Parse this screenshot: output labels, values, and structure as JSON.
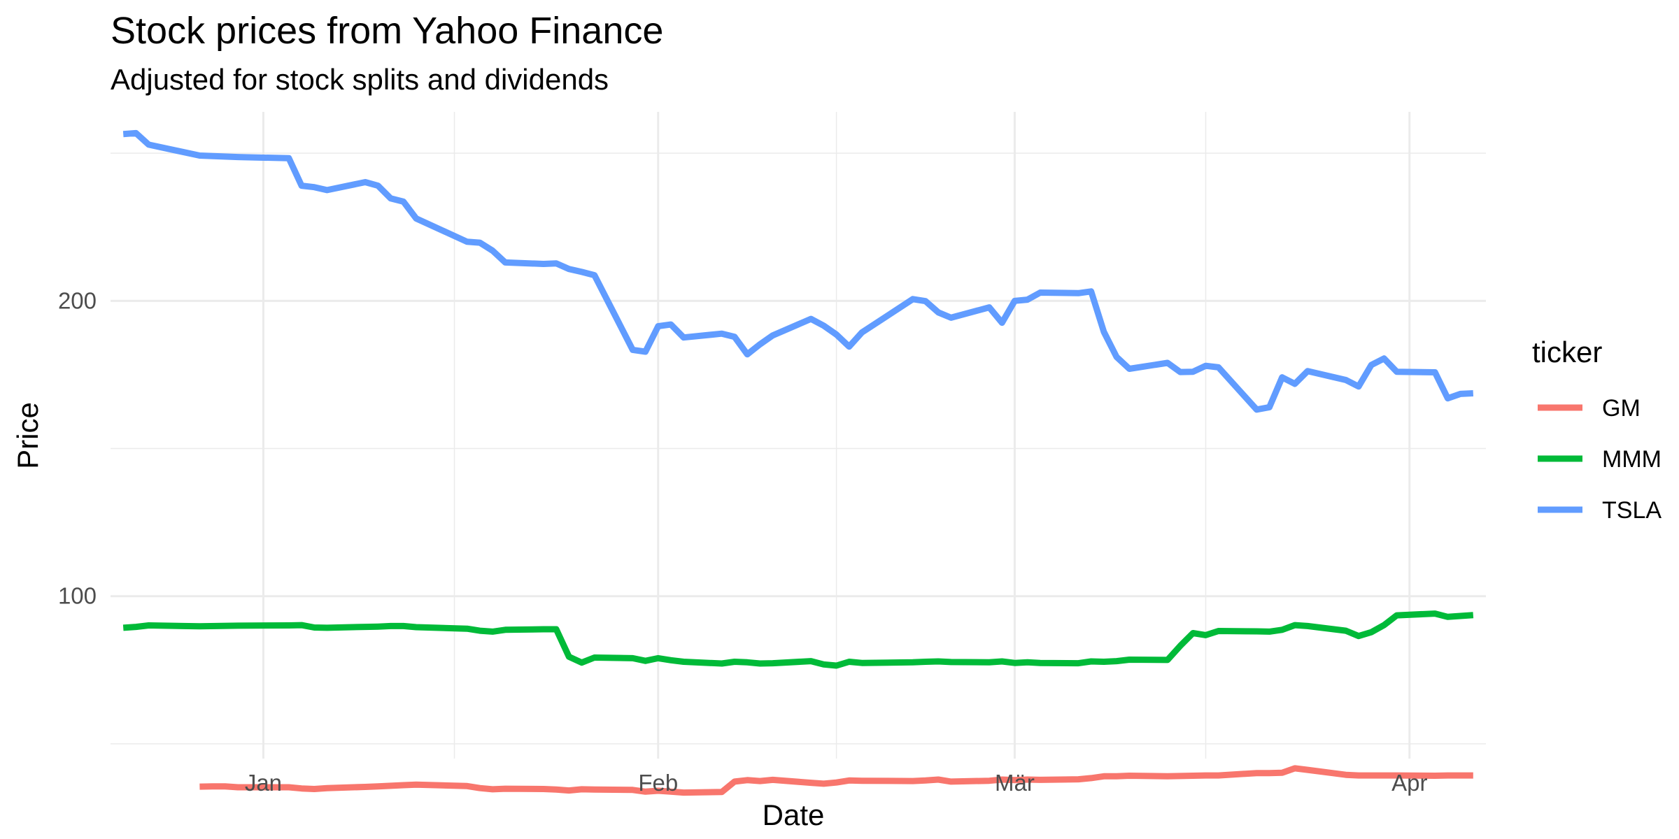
{
  "chart_data": {
    "type": "line",
    "title": "Stock prices from Yahoo Finance",
    "subtitle": "Adjusted for stock splits and dividends",
    "xlabel": "Date",
    "ylabel": "Price",
    "ylim": [
      45,
      264
    ],
    "xlim": [
      "2022-12-20",
      "2023-04-07"
    ],
    "x_ticks": [
      {
        "date": "2023-01-01",
        "label": "Jan"
      },
      {
        "date": "2023-02-01",
        "label": "Feb"
      },
      {
        "date": "2023-03-01",
        "label": "Mär"
      },
      {
        "date": "2023-04-01",
        "label": "Apr"
      }
    ],
    "x_minor_ticks": [
      "2023-01-16",
      "2023-02-15",
      "2023-03-16"
    ],
    "y_ticks": [
      100,
      200
    ],
    "y_minor_ticks": [
      50,
      150,
      250
    ],
    "grid": true,
    "legend": {
      "title": "ticker",
      "position": "right"
    },
    "series": [
      {
        "name": "GM",
        "color": "#F8766D",
        "points": [
          [
            "2022-12-27",
            35.5
          ],
          [
            "2022-12-28",
            35.6
          ],
          [
            "2022-12-29",
            35.6
          ],
          [
            "2022-12-30",
            35.3
          ],
          [
            "2023-01-03",
            35.3
          ],
          [
            "2023-01-04",
            34.9
          ],
          [
            "2023-01-05",
            34.7
          ],
          [
            "2023-01-06",
            35.0
          ],
          [
            "2023-01-09",
            35.4
          ],
          [
            "2023-01-10",
            35.6
          ],
          [
            "2023-01-11",
            35.8
          ],
          [
            "2023-01-12",
            36.0
          ],
          [
            "2023-01-13",
            36.2
          ],
          [
            "2023-01-17",
            35.7
          ],
          [
            "2023-01-18",
            35.0
          ],
          [
            "2023-01-19",
            34.6
          ],
          [
            "2023-01-20",
            34.8
          ],
          [
            "2023-01-23",
            34.7
          ],
          [
            "2023-01-24",
            34.5
          ],
          [
            "2023-01-25",
            34.2
          ],
          [
            "2023-01-26",
            34.6
          ],
          [
            "2023-01-27",
            34.5
          ],
          [
            "2023-01-30",
            34.4
          ],
          [
            "2023-01-31",
            33.8
          ],
          [
            "2023-02-01",
            34.1
          ],
          [
            "2023-02-02",
            33.8
          ],
          [
            "2023-02-03",
            33.5
          ],
          [
            "2023-02-06",
            33.7
          ],
          [
            "2023-02-07",
            37.2
          ],
          [
            "2023-02-08",
            37.7
          ],
          [
            "2023-02-09",
            37.4
          ],
          [
            "2023-02-10",
            37.8
          ],
          [
            "2023-02-13",
            36.8
          ],
          [
            "2023-02-14",
            36.5
          ],
          [
            "2023-02-15",
            36.9
          ],
          [
            "2023-02-16",
            37.6
          ],
          [
            "2023-02-17",
            37.5
          ],
          [
            "2023-02-21",
            37.4
          ],
          [
            "2023-02-22",
            37.6
          ],
          [
            "2023-02-23",
            37.9
          ],
          [
            "2023-02-24",
            37.2
          ],
          [
            "2023-02-27",
            37.5
          ],
          [
            "2023-02-28",
            37.9
          ],
          [
            "2023-03-01",
            37.7
          ],
          [
            "2023-03-02",
            37.9
          ],
          [
            "2023-03-03",
            37.8
          ],
          [
            "2023-03-06",
            38.0
          ],
          [
            "2023-03-07",
            38.4
          ],
          [
            "2023-03-08",
            39.0
          ],
          [
            "2023-03-09",
            39.0
          ],
          [
            "2023-03-10",
            39.2
          ],
          [
            "2023-03-13",
            39.0
          ],
          [
            "2023-03-14",
            39.1
          ],
          [
            "2023-03-15",
            39.2
          ],
          [
            "2023-03-16",
            39.3
          ],
          [
            "2023-03-17",
            39.3
          ],
          [
            "2023-03-20",
            40.1
          ],
          [
            "2023-03-21",
            40.1
          ],
          [
            "2023-03-22",
            40.2
          ],
          [
            "2023-03-23",
            41.7
          ],
          [
            "2023-03-24",
            41.2
          ],
          [
            "2023-03-27",
            39.5
          ],
          [
            "2023-03-28",
            39.3
          ],
          [
            "2023-03-29",
            39.3
          ],
          [
            "2023-03-30",
            39.3
          ],
          [
            "2023-03-31",
            39.3
          ],
          [
            "2023-04-03",
            39.2
          ],
          [
            "2023-04-04",
            39.3
          ],
          [
            "2023-04-05",
            39.3
          ],
          [
            "2023-04-06",
            39.3
          ]
        ]
      },
      {
        "name": "MMM",
        "color": "#00BA38",
        "points": [
          [
            "2022-12-21",
            89.3
          ],
          [
            "2022-12-22",
            89.6
          ],
          [
            "2022-12-23",
            90.1
          ],
          [
            "2022-12-27",
            89.8
          ],
          [
            "2022-12-30",
            90.0
          ],
          [
            "2023-01-03",
            90.1
          ],
          [
            "2023-01-04",
            90.2
          ],
          [
            "2023-01-05",
            89.4
          ],
          [
            "2023-01-06",
            89.3
          ],
          [
            "2023-01-09",
            89.6
          ],
          [
            "2023-01-10",
            89.7
          ],
          [
            "2023-01-11",
            89.9
          ],
          [
            "2023-01-12",
            89.9
          ],
          [
            "2023-01-13",
            89.5
          ],
          [
            "2023-01-17",
            89.0
          ],
          [
            "2023-01-18",
            88.3
          ],
          [
            "2023-01-19",
            88.0
          ],
          [
            "2023-01-20",
            88.6
          ],
          [
            "2023-01-23",
            88.8
          ],
          [
            "2023-01-24",
            88.8
          ],
          [
            "2023-01-25",
            79.5
          ],
          [
            "2023-01-26",
            77.5
          ],
          [
            "2023-01-27",
            79.2
          ],
          [
            "2023-01-30",
            79.0
          ],
          [
            "2023-01-31",
            78.1
          ],
          [
            "2023-02-01",
            79.0
          ],
          [
            "2023-02-02",
            78.3
          ],
          [
            "2023-02-03",
            77.8
          ],
          [
            "2023-02-06",
            77.2
          ],
          [
            "2023-02-07",
            77.8
          ],
          [
            "2023-02-08",
            77.6
          ],
          [
            "2023-02-09",
            77.2
          ],
          [
            "2023-02-10",
            77.3
          ],
          [
            "2023-02-13",
            78.0
          ],
          [
            "2023-02-14",
            76.9
          ],
          [
            "2023-02-15",
            76.5
          ],
          [
            "2023-02-16",
            77.8
          ],
          [
            "2023-02-17",
            77.4
          ],
          [
            "2023-02-21",
            77.6
          ],
          [
            "2023-02-22",
            77.8
          ],
          [
            "2023-02-23",
            77.9
          ],
          [
            "2023-02-24",
            77.7
          ],
          [
            "2023-02-27",
            77.6
          ],
          [
            "2023-02-28",
            77.9
          ],
          [
            "2023-03-01",
            77.4
          ],
          [
            "2023-03-02",
            77.6
          ],
          [
            "2023-03-03",
            77.4
          ],
          [
            "2023-03-06",
            77.3
          ],
          [
            "2023-03-07",
            77.9
          ],
          [
            "2023-03-08",
            77.8
          ],
          [
            "2023-03-09",
            78.0
          ],
          [
            "2023-03-10",
            78.5
          ],
          [
            "2023-03-13",
            78.4
          ],
          [
            "2023-03-14",
            83.2
          ],
          [
            "2023-03-15",
            87.5
          ],
          [
            "2023-03-16",
            86.8
          ],
          [
            "2023-03-17",
            88.2
          ],
          [
            "2023-03-20",
            88.1
          ],
          [
            "2023-03-21",
            88.0
          ],
          [
            "2023-03-22",
            88.6
          ],
          [
            "2023-03-23",
            90.2
          ],
          [
            "2023-03-24",
            89.9
          ],
          [
            "2023-03-27",
            88.3
          ],
          [
            "2023-03-28",
            86.5
          ],
          [
            "2023-03-29",
            87.8
          ],
          [
            "2023-03-30",
            90.2
          ],
          [
            "2023-03-31",
            93.5
          ],
          [
            "2023-04-03",
            94.1
          ],
          [
            "2023-04-04",
            93.0
          ],
          [
            "2023-04-05",
            93.3
          ],
          [
            "2023-04-06",
            93.6
          ]
        ]
      },
      {
        "name": "TSLA",
        "color": "#619CFF",
        "points": [
          [
            "2022-12-21",
            256.5
          ],
          [
            "2022-12-22",
            256.8
          ],
          [
            "2022-12-23",
            252.9
          ],
          [
            "2022-12-27",
            249.2
          ],
          [
            "2022-12-30",
            248.7
          ],
          [
            "2023-01-03",
            248.3
          ],
          [
            "2023-01-04",
            239.0
          ],
          [
            "2023-01-05",
            238.5
          ],
          [
            "2023-01-06",
            237.5
          ],
          [
            "2023-01-09",
            240.2
          ],
          [
            "2023-01-10",
            239.0
          ],
          [
            "2023-01-11",
            234.7
          ],
          [
            "2023-01-12",
            233.6
          ],
          [
            "2023-01-13",
            227.9
          ],
          [
            "2023-01-17",
            220.0
          ],
          [
            "2023-01-18",
            219.7
          ],
          [
            "2023-01-19",
            217.0
          ],
          [
            "2023-01-20",
            213.0
          ],
          [
            "2023-01-23",
            212.5
          ],
          [
            "2023-01-24",
            212.7
          ],
          [
            "2023-01-25",
            210.8
          ],
          [
            "2023-01-26",
            209.8
          ],
          [
            "2023-01-27",
            208.7
          ],
          [
            "2023-01-30",
            183.4
          ],
          [
            "2023-01-31",
            182.8
          ],
          [
            "2023-02-01",
            191.4
          ],
          [
            "2023-02-02",
            192.0
          ],
          [
            "2023-02-03",
            187.6
          ],
          [
            "2023-02-06",
            188.9
          ],
          [
            "2023-02-07",
            187.8
          ],
          [
            "2023-02-08",
            181.9
          ],
          [
            "2023-02-09",
            185.3
          ],
          [
            "2023-02-10",
            188.3
          ],
          [
            "2023-02-13",
            193.9
          ],
          [
            "2023-02-14",
            191.6
          ],
          [
            "2023-02-15",
            188.6
          ],
          [
            "2023-02-16",
            184.5
          ],
          [
            "2023-02-17",
            189.3
          ],
          [
            "2023-02-21",
            200.6
          ],
          [
            "2023-02-22",
            199.9
          ],
          [
            "2023-02-23",
            196.1
          ],
          [
            "2023-02-24",
            194.3
          ],
          [
            "2023-02-27",
            197.8
          ],
          [
            "2023-02-28",
            192.6
          ],
          [
            "2023-03-01",
            200.0
          ],
          [
            "2023-03-02",
            200.4
          ],
          [
            "2023-03-03",
            202.8
          ],
          [
            "2023-03-06",
            202.6
          ],
          [
            "2023-03-07",
            203.2
          ],
          [
            "2023-03-08",
            189.5
          ],
          [
            "2023-03-09",
            181.0
          ],
          [
            "2023-03-10",
            177.0
          ],
          [
            "2023-03-13",
            179.0
          ],
          [
            "2023-03-14",
            175.9
          ],
          [
            "2023-03-15",
            176.0
          ],
          [
            "2023-03-16",
            178.0
          ],
          [
            "2023-03-17",
            177.5
          ],
          [
            "2023-03-20",
            163.2
          ],
          [
            "2023-03-21",
            164.0
          ],
          [
            "2023-03-22",
            174.1
          ],
          [
            "2023-03-23",
            171.9
          ],
          [
            "2023-03-24",
            176.2
          ],
          [
            "2023-03-27",
            173.2
          ],
          [
            "2023-03-28",
            171.0
          ],
          [
            "2023-03-29",
            178.3
          ],
          [
            "2023-03-30",
            180.5
          ],
          [
            "2023-03-31",
            176.0
          ],
          [
            "2023-04-03",
            175.8
          ],
          [
            "2023-04-04",
            167.0
          ],
          [
            "2023-04-05",
            168.5
          ],
          [
            "2023-04-06",
            168.7
          ]
        ]
      }
    ]
  }
}
